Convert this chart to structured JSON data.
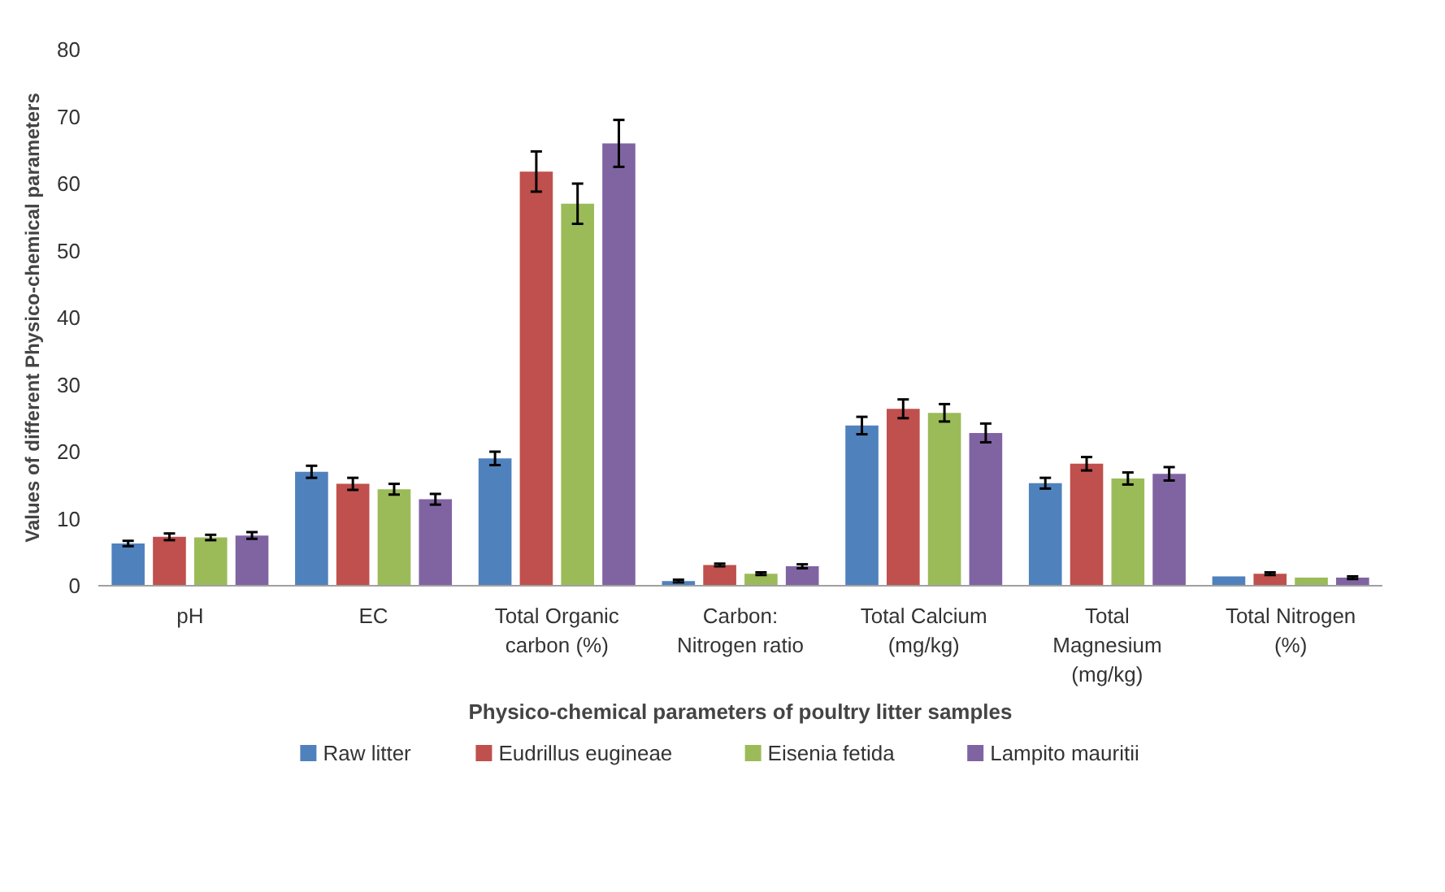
{
  "chart_data": {
    "type": "bar",
    "xlabel": "Physico-chemical parameters of poultry litter samples",
    "ylabel": "Values of different Physico-chemical parameters",
    "categories": [
      "pH",
      "EC",
      "Total Organic carbon (%)",
      "Carbon: Nitrogen ratio",
      "Total Calcium (mg/kg)",
      "Total Magnesium (mg/kg)",
      "Total Nitrogen (%)"
    ],
    "series": [
      {
        "name": "Raw litter",
        "color": "#4f81bd",
        "values": [
          6.3,
          17,
          19,
          0.7,
          23.9,
          15.3,
          1.4
        ],
        "errors": [
          0.4,
          0.9,
          1,
          0.2,
          1.3,
          0.8,
          null
        ]
      },
      {
        "name": "Eudrillus eugineae",
        "color": "#c0504d",
        "values": [
          7.3,
          15.2,
          61.8,
          3.1,
          26.4,
          18.2,
          1.8
        ],
        "errors": [
          0.5,
          0.9,
          3,
          0.2,
          1.4,
          1,
          0.2
        ]
      },
      {
        "name": "Eisenia fetida",
        "color": "#9bbb59",
        "values": [
          7.2,
          14.4,
          57,
          1.8,
          25.8,
          16,
          1.2
        ],
        "errors": [
          0.4,
          0.8,
          3,
          0.2,
          1.3,
          0.9,
          null
        ]
      },
      {
        "name": "Lampito mauritii",
        "color": "#8064a2",
        "values": [
          7.5,
          12.9,
          66,
          2.9,
          22.8,
          16.7,
          1.2
        ],
        "errors": [
          0.5,
          0.8,
          3.5,
          0.3,
          1.4,
          1,
          0.2
        ]
      }
    ],
    "ylim": [
      0,
      80
    ],
    "yticks": [
      0,
      10,
      20,
      30,
      40,
      50,
      60,
      70,
      80
    ],
    "grid": false,
    "legend": "bottom"
  }
}
